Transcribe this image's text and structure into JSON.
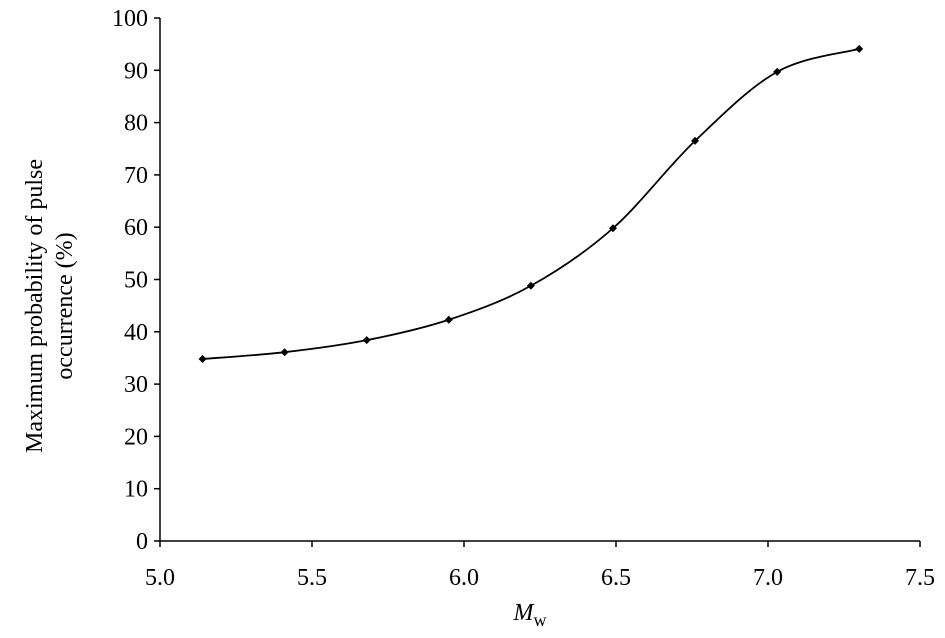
{
  "chart_data": {
    "type": "line",
    "xlabel": "M",
    "xlabel_subscript": "w",
    "ylabel": [
      "Maximum probability of pulse",
      "occurrence (%)"
    ],
    "x": [
      5.14,
      5.41,
      5.68,
      5.95,
      6.22,
      6.49,
      6.76,
      7.03,
      7.3
    ],
    "values": [
      34.8,
      36.1,
      38.4,
      42.3,
      48.8,
      59.8,
      76.5,
      89.7,
      94.1
    ],
    "color": "#000000",
    "marker": "diamond",
    "smooth": true,
    "xlim": [
      5.0,
      7.5
    ],
    "xticks": [
      {
        "value": 5.0,
        "label": "5.0"
      },
      {
        "value": 5.5,
        "label": "5.5"
      },
      {
        "value": 6.0,
        "label": "6.0"
      },
      {
        "value": 6.5,
        "label": "6.5"
      },
      {
        "value": 7.0,
        "label": "7.0"
      },
      {
        "value": 7.5,
        "label": "7.5"
      }
    ],
    "ylim": [
      0,
      100
    ],
    "yticks": [
      0,
      10,
      20,
      30,
      40,
      50,
      60,
      70,
      80,
      90,
      100
    ],
    "grid": false
  }
}
